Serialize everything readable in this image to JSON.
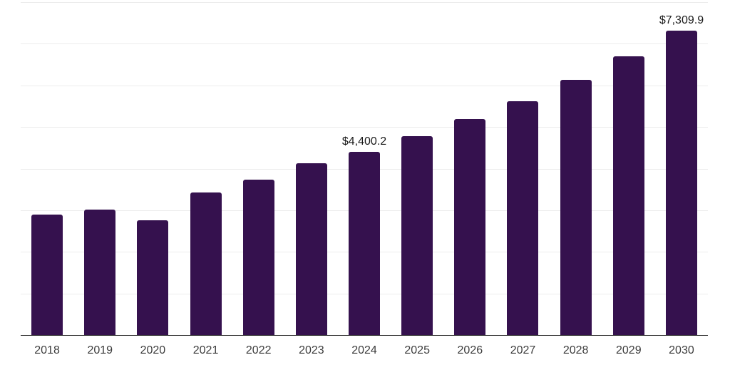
{
  "chart_data": {
    "type": "bar",
    "title": "",
    "xlabel": "",
    "ylabel": "",
    "categories": [
      "2018",
      "2019",
      "2020",
      "2021",
      "2022",
      "2023",
      "2024",
      "2025",
      "2026",
      "2027",
      "2028",
      "2029",
      "2030"
    ],
    "values": [
      2890,
      3010,
      2750,
      3420,
      3730,
      4130,
      4400.2,
      4780,
      5190,
      5620,
      6140,
      6700,
      7309.9
    ],
    "value_labels": [
      null,
      null,
      null,
      null,
      null,
      null,
      "$4,400.2",
      null,
      null,
      null,
      null,
      null,
      "$7,309.9"
    ],
    "ylim": [
      0,
      8000
    ],
    "gridline_interval": 1000,
    "grid": "horizontal",
    "y_axis_tick_labels": "none",
    "legend": "none",
    "colors": {
      "bar": "#35114E",
      "gridline": "#ececec",
      "axis_line": "#333333",
      "x_tick_label": "#3c3c3c",
      "value_label": "#1a1a1a",
      "background": "#ffffff"
    }
  }
}
